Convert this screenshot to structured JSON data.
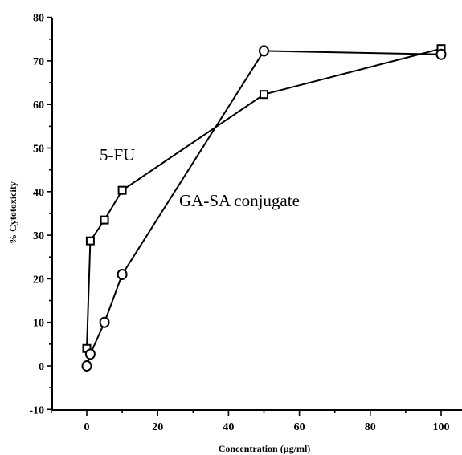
{
  "chart_data": {
    "type": "line",
    "xlabel": "Concentration (µg/ml)",
    "ylabel": "% Cytotoxicity",
    "xlim": [
      -10,
      105
    ],
    "ylim": [
      -10,
      80
    ],
    "xticks": [
      0,
      20,
      40,
      60,
      80,
      100
    ],
    "yticks": [
      -10,
      0,
      10,
      20,
      30,
      40,
      50,
      60,
      70,
      80
    ],
    "grid": false,
    "series": [
      {
        "name": "5-FU",
        "marker": "square",
        "x": [
          0,
          1,
          5,
          10,
          50,
          100
        ],
        "y": [
          4,
          28.7,
          33.5,
          40.3,
          62.3,
          72.8
        ]
      },
      {
        "name": "GA-SA conjugate",
        "marker": "circle",
        "x": [
          0,
          1,
          5,
          10,
          50,
          100
        ],
        "y": [
          0,
          2.7,
          10,
          21,
          72.3,
          71.5
        ]
      }
    ],
    "annotations": [
      {
        "text": "5-FU",
        "series": 0
      },
      {
        "text": "GA-SA conjugate",
        "series": 1
      }
    ]
  }
}
